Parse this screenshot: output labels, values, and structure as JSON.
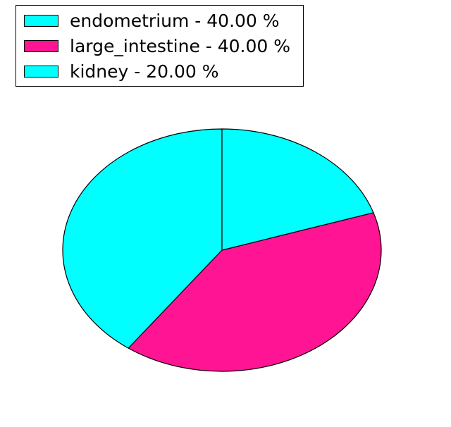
{
  "chart_data": {
    "type": "pie",
    "categories": [
      "endometrium",
      "large_intestine",
      "kidney"
    ],
    "values": [
      40.0,
      40.0,
      20.0
    ],
    "percent_labels": [
      "40.00 %",
      "40.00 %",
      "20.00 %"
    ],
    "colors": [
      "#00ffff",
      "#ff1493",
      "#00ffff"
    ],
    "legend_labels": [
      "endometrium - 40.00 %",
      "large_intestine - 40.00 %",
      "kidney - 20.00 %"
    ],
    "title": "",
    "start_angle_deg": 90,
    "counterclockwise": true,
    "edge_color": "#000000",
    "background_color": "#ffffff",
    "legend_position": "upper left"
  }
}
